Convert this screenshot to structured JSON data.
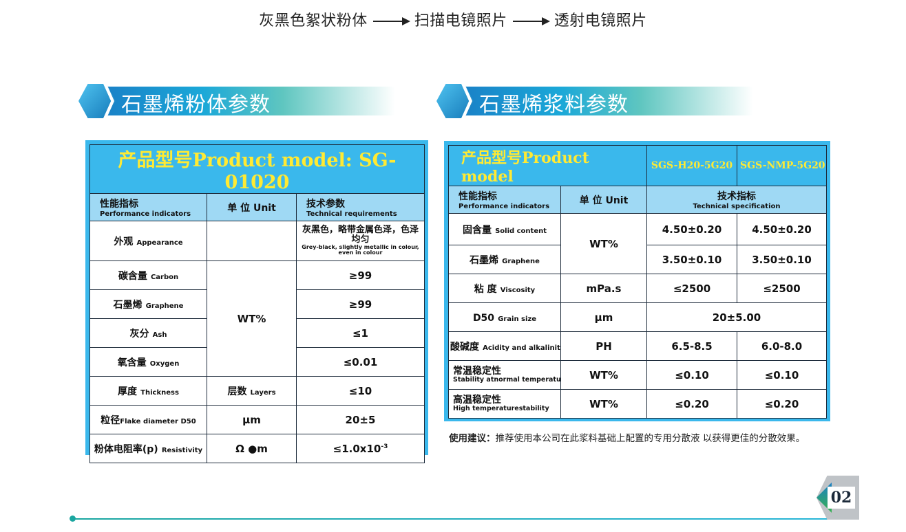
{
  "process": {
    "step1": "灰黑色絮状粉体",
    "step2": "扫描电镜照片",
    "step3": "透射电镜照片"
  },
  "powder": {
    "section_title": "石墨烯粉体参数",
    "model_title": "产品型号Product model: SG-01020",
    "headers": {
      "indicator_cn": "性能指标",
      "indicator_en": "Performance indicators",
      "unit": "单 位 Unit",
      "req_cn": "技术参数",
      "req_en": "Technical requirements"
    },
    "rows": [
      {
        "cn": "外观",
        "en": "Appearance",
        "unit": "",
        "val_cn": "灰黑色，略带金属色泽，色泽均匀",
        "val_en": "Grey-black, slightly metallic in colour, even in colour"
      },
      {
        "cn": "碳含量",
        "en": "Carbon",
        "val": "≥99"
      },
      {
        "cn": "石墨烯",
        "en": "Graphene",
        "val": "≥99"
      },
      {
        "cn": "灰分",
        "en": "Ash",
        "val": "≤1"
      },
      {
        "cn": "氧含量",
        "en": "Oxygen",
        "val": "≤0.01"
      },
      {
        "cn": "厚度",
        "en": "Thickness",
        "unit_cn": "层数",
        "unit_en": "Layers",
        "val": "≤10"
      },
      {
        "cn": "粒径",
        "en": "Flake diameter D50",
        "unit": "μm",
        "val": "20±5"
      },
      {
        "cn": "粉体电阻率(p)",
        "en": "Resistivity",
        "unit": "Ω ●m",
        "val": "≤1.0x10",
        "sup": "-3"
      }
    ],
    "merged_unit": "WT%"
  },
  "slurry": {
    "section_title": "石墨烯浆料参数",
    "model_title": "产品型号Product model",
    "model_a": "SGS-H20-5G20",
    "model_b": "SGS-NMP-5G20",
    "headers": {
      "indicator_cn": "性能指标",
      "indicator_en": "Performance indicators",
      "unit": "单 位 Unit",
      "spec_cn": "技术指标",
      "spec_en": "Technical specification"
    },
    "rows": [
      {
        "cn": "固含量",
        "en": "Solid content",
        "unit": "WT%",
        "a": "4.50±0.20",
        "b": "4.50±0.20"
      },
      {
        "cn": "石墨烯",
        "en": "Graphene",
        "a": "3.50±0.10",
        "b": "3.50±0.10"
      },
      {
        "cn": "粘 度",
        "en": "Viscosity",
        "unit": "mPa.s",
        "a": "≤2500",
        "b": "≤2500"
      },
      {
        "cn": "D50",
        "en": "Grain size",
        "unit": "μm",
        "ab": "20±5.00"
      },
      {
        "cn": "酸碱度",
        "en": "Acidity and alkalinity",
        "unit": "PH",
        "a": "6.5-8.5",
        "b": "6.0-8.0"
      },
      {
        "cn": "常温稳定性",
        "en": "Stability atnormal temperature",
        "unit": "WT%",
        "a": "≤0.10",
        "b": "≤0.10"
      },
      {
        "cn": "高温稳定性",
        "en": "High temperaturestability",
        "unit": "WT%",
        "a": "≤0.20",
        "b": "≤0.20"
      }
    ],
    "note_label": "使用建议：",
    "note_text": "推荐使用本公司在此浆料基础上配置的专用分散液 以获得更佳的分散效果。"
  },
  "page_number": "02",
  "colors": {
    "table_frame": "#3ab8ec",
    "header_row": "#9fd9f4",
    "model_text": "#ffea33"
  }
}
